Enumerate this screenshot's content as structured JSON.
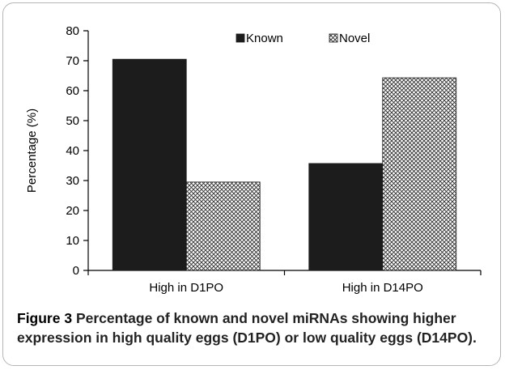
{
  "chart_data": {
    "type": "bar",
    "categories": [
      "High in D1PO",
      "High in D14PO"
    ],
    "series": [
      {
        "name": "Known",
        "values": [
          70.5,
          35.7
        ],
        "fill": "solid",
        "color": "#1c1c1c"
      },
      {
        "name": "Novel",
        "values": [
          29.5,
          64.3
        ],
        "fill": "crosshatch",
        "color": "#2b2b2b"
      }
    ],
    "title": "",
    "xlabel": "",
    "ylabel": "Percentage (%)",
    "ylim": [
      0,
      80
    ],
    "yticks": [
      0,
      10,
      20,
      30,
      40,
      50,
      60,
      70,
      80
    ],
    "grid": false,
    "legend_position": "top"
  },
  "caption": {
    "lead": "Figure 3",
    "text": "Percentage of known and novel miRNAs showing higher expression in high quality eggs (D1PO) or low quality eggs (D14PO)."
  }
}
